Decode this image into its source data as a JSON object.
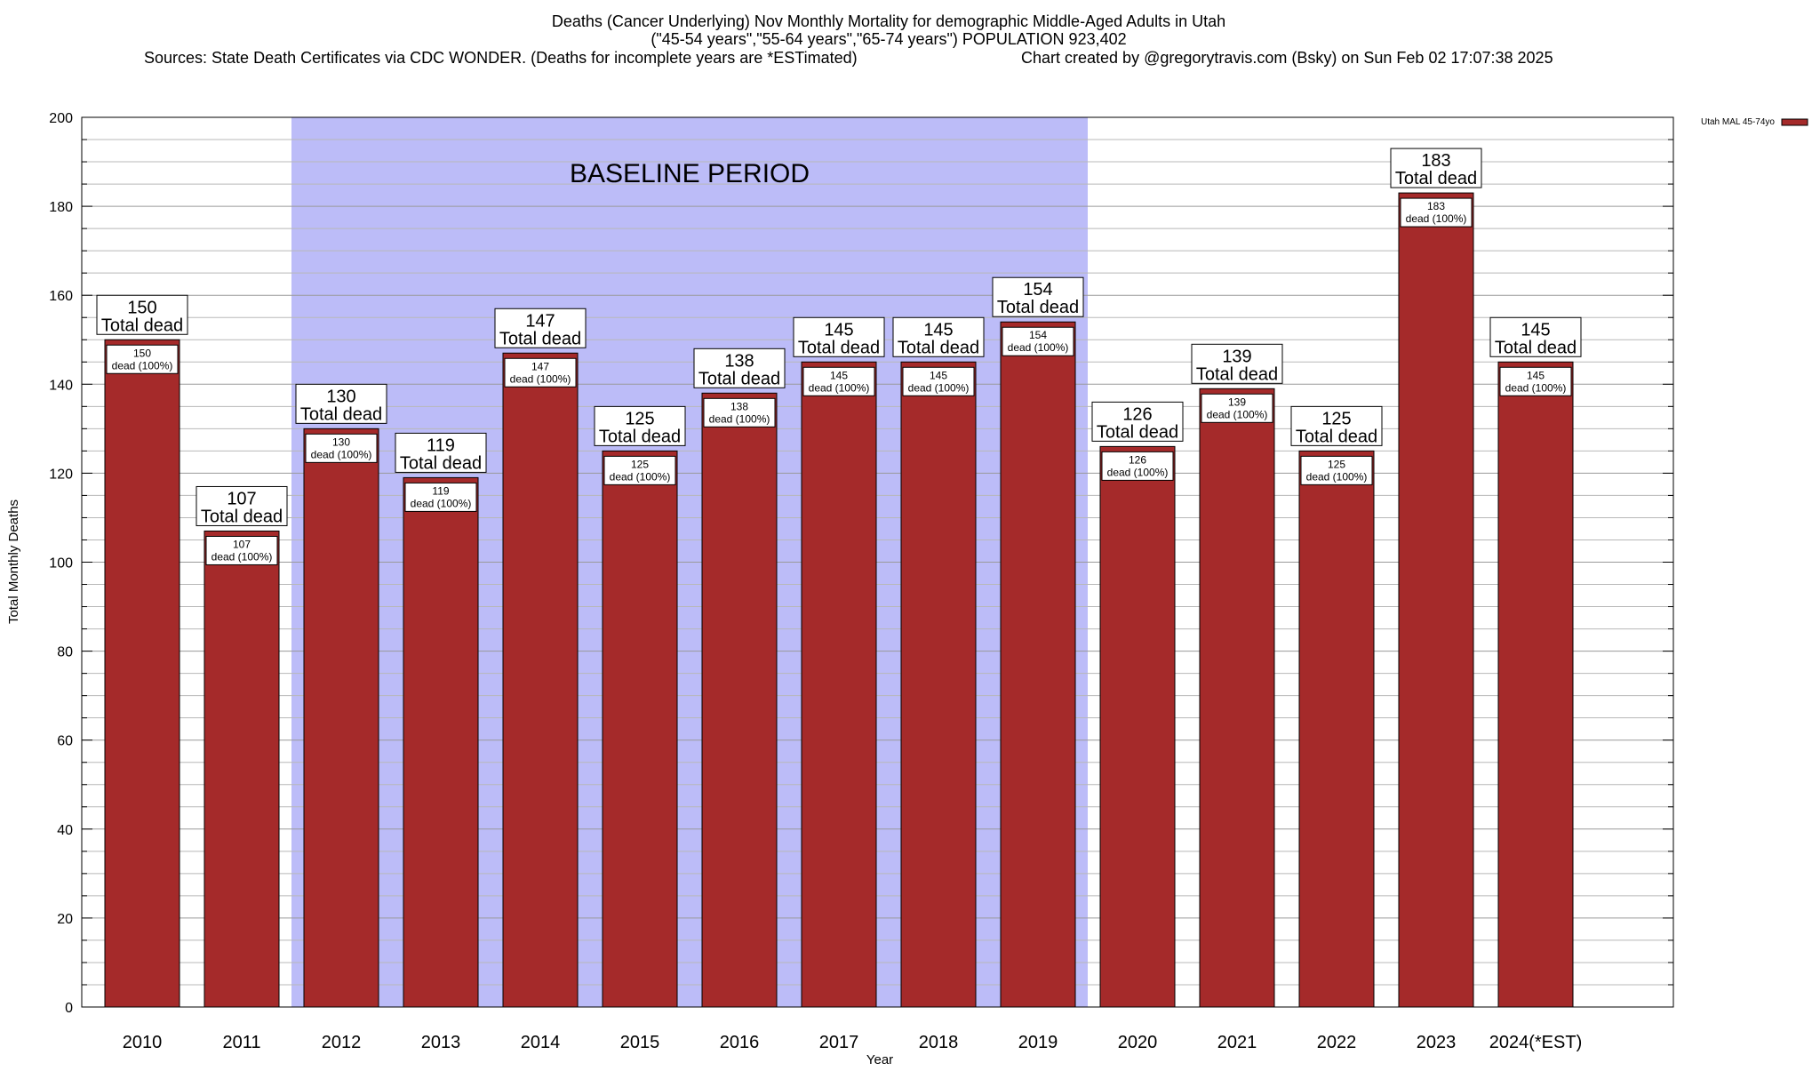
{
  "header": {
    "line1": "Deaths (Cancer Underlying) Nov Monthly Mortality for demographic Middle-Aged Adults in Utah",
    "line2": "(\"45-54 years\",\"55-64 years\",\"65-74 years\") POPULATION 923,402",
    "line3_left": "Sources: State Death Certificates via CDC WONDER. (Deaths for incomplete years are *ESTimated)",
    "line3_right": "Chart created by @gregorytravis.com (Bsky) on Sun Feb 02 17:07:38 2025"
  },
  "chart_data": {
    "type": "bar",
    "title": "Deaths (Cancer Underlying) Nov Monthly Mortality for demographic Middle-Aged Adults in Utah",
    "xlabel": "Year",
    "ylabel": "Total Monthly Deaths",
    "ylim": [
      0,
      200
    ],
    "yticks": [
      0,
      20,
      40,
      60,
      80,
      100,
      120,
      140,
      160,
      180,
      200
    ],
    "grid": true,
    "legend_position": "top-right",
    "categories": [
      "2010",
      "2011",
      "2012",
      "2013",
      "2014",
      "2015",
      "2016",
      "2017",
      "2018",
      "2019",
      "2020",
      "2021",
      "2022",
      "2023",
      "2024(*EST)"
    ],
    "series": [
      {
        "name": "Utah MAL 45-74yo",
        "color": "#a52a2a",
        "values": [
          150,
          107,
          130,
          119,
          147,
          125,
          138,
          145,
          145,
          154,
          126,
          139,
          125,
          183,
          145
        ]
      }
    ],
    "total_label_text": "Total dead",
    "inner_label_text": "dead (100%)",
    "baseline_region": {
      "label": "BASELINE PERIOD",
      "start_category": "2012",
      "end_category": "2019",
      "color": "#bcbcf8"
    }
  }
}
